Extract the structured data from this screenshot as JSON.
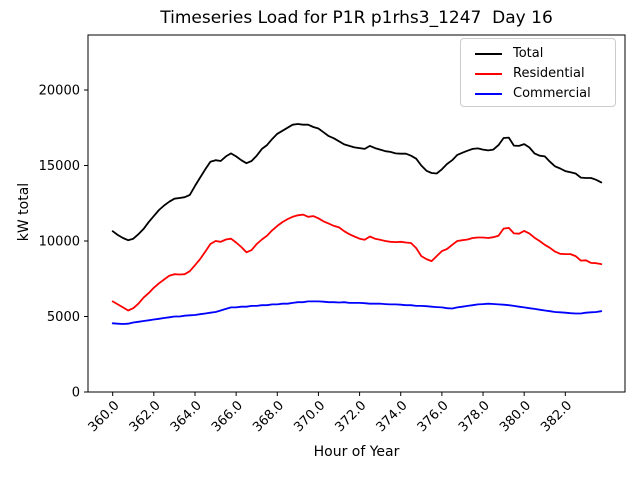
{
  "chart_data": {
    "type": "line",
    "title": "Timeseries Load for P1R p1rhs3_1247  Day 16",
    "xlabel": "Hour of Year",
    "ylabel": "kW total",
    "xlim": [
      358.8,
      384.9
    ],
    "ylim": [
      0,
      23642
    ],
    "grid": false,
    "legend_position": "upper right",
    "x_start": 360.0,
    "x_step": 0.25,
    "x_ticks": [
      {
        "value": 360,
        "label": "360.0"
      },
      {
        "value": 362,
        "label": "362.0"
      },
      {
        "value": 364,
        "label": "364.0"
      },
      {
        "value": 366,
        "label": "366.0"
      },
      {
        "value": 368,
        "label": "368.0"
      },
      {
        "value": 370,
        "label": "370.0"
      },
      {
        "value": 372,
        "label": "372.0"
      },
      {
        "value": 374,
        "label": "374.0"
      },
      {
        "value": 376,
        "label": "376.0"
      },
      {
        "value": 378,
        "label": "378.0"
      },
      {
        "value": 380,
        "label": "380.0"
      },
      {
        "value": 382,
        "label": "382.0"
      }
    ],
    "y_ticks": [
      {
        "value": 0,
        "label": "0"
      },
      {
        "value": 5000,
        "label": "5000"
      },
      {
        "value": 10000,
        "label": "10000"
      },
      {
        "value": 15000,
        "label": "15000"
      },
      {
        "value": 20000,
        "label": "20000"
      }
    ],
    "series": [
      {
        "name": "Total",
        "color": "#000000",
        "values": [
          10650,
          10400,
          10200,
          10050,
          10150,
          10450,
          10800,
          11250,
          11650,
          12050,
          12350,
          12600,
          12800,
          12850,
          12900,
          13050,
          13650,
          14200,
          14750,
          15250,
          15350,
          15300,
          15600,
          15800,
          15600,
          15350,
          15150,
          15300,
          15650,
          16100,
          16350,
          16750,
          17100,
          17300,
          17500,
          17700,
          17750,
          17700,
          17700,
          17550,
          17450,
          17200,
          16950,
          16800,
          16600,
          16400,
          16300,
          16200,
          16150,
          16100,
          16300,
          16150,
          16050,
          15950,
          15900,
          15800,
          15780,
          15780,
          15650,
          15450,
          15000,
          14650,
          14500,
          14470,
          14750,
          15100,
          15350,
          15700,
          15850,
          15980,
          16100,
          16130,
          16050,
          16000,
          16050,
          16350,
          16820,
          16850,
          16320,
          16300,
          16420,
          16200,
          15800,
          15650,
          15600,
          15250,
          14950,
          14800,
          14630,
          14550,
          14470,
          14200,
          14170,
          14170,
          14050,
          13880
        ]
      },
      {
        "name": "Residential",
        "color": "#ff0000",
        "values": [
          6000,
          5800,
          5600,
          5400,
          5550,
          5850,
          6250,
          6550,
          6900,
          7200,
          7450,
          7700,
          7800,
          7780,
          7800,
          8000,
          8400,
          8800,
          9300,
          9800,
          10000,
          9950,
          10100,
          10150,
          9900,
          9600,
          9250,
          9400,
          9800,
          10100,
          10350,
          10700,
          11000,
          11250,
          11450,
          11600,
          11700,
          11750,
          11600,
          11650,
          11500,
          11300,
          11150,
          11000,
          10900,
          10650,
          10450,
          10300,
          10150,
          10080,
          10300,
          10150,
          10080,
          10000,
          9950,
          9930,
          9950,
          9900,
          9870,
          9530,
          9000,
          8800,
          8670,
          9000,
          9330,
          9470,
          9750,
          10000,
          10050,
          10100,
          10200,
          10230,
          10230,
          10200,
          10250,
          10350,
          10820,
          10870,
          10500,
          10480,
          10670,
          10500,
          10220,
          10000,
          9750,
          9550,
          9300,
          9150,
          9130,
          9130,
          9000,
          8700,
          8720,
          8550,
          8530,
          8470
        ]
      },
      {
        "name": "Commercial",
        "color": "#0000ff",
        "values": [
          4550,
          4520,
          4500,
          4520,
          4600,
          4650,
          4700,
          4750,
          4800,
          4850,
          4900,
          4950,
          5000,
          5000,
          5050,
          5080,
          5100,
          5150,
          5200,
          5250,
          5300,
          5400,
          5500,
          5600,
          5600,
          5650,
          5650,
          5700,
          5700,
          5750,
          5750,
          5800,
          5800,
          5850,
          5850,
          5900,
          5950,
          5950,
          6000,
          6000,
          6000,
          5980,
          5950,
          5950,
          5930,
          5950,
          5900,
          5900,
          5900,
          5880,
          5850,
          5850,
          5850,
          5820,
          5800,
          5800,
          5780,
          5750,
          5750,
          5700,
          5700,
          5680,
          5650,
          5620,
          5600,
          5550,
          5530,
          5600,
          5650,
          5700,
          5750,
          5800,
          5820,
          5850,
          5830,
          5800,
          5780,
          5750,
          5700,
          5650,
          5600,
          5550,
          5500,
          5450,
          5400,
          5350,
          5300,
          5280,
          5250,
          5220,
          5200,
          5200,
          5250,
          5280,
          5300,
          5350
        ]
      }
    ]
  }
}
